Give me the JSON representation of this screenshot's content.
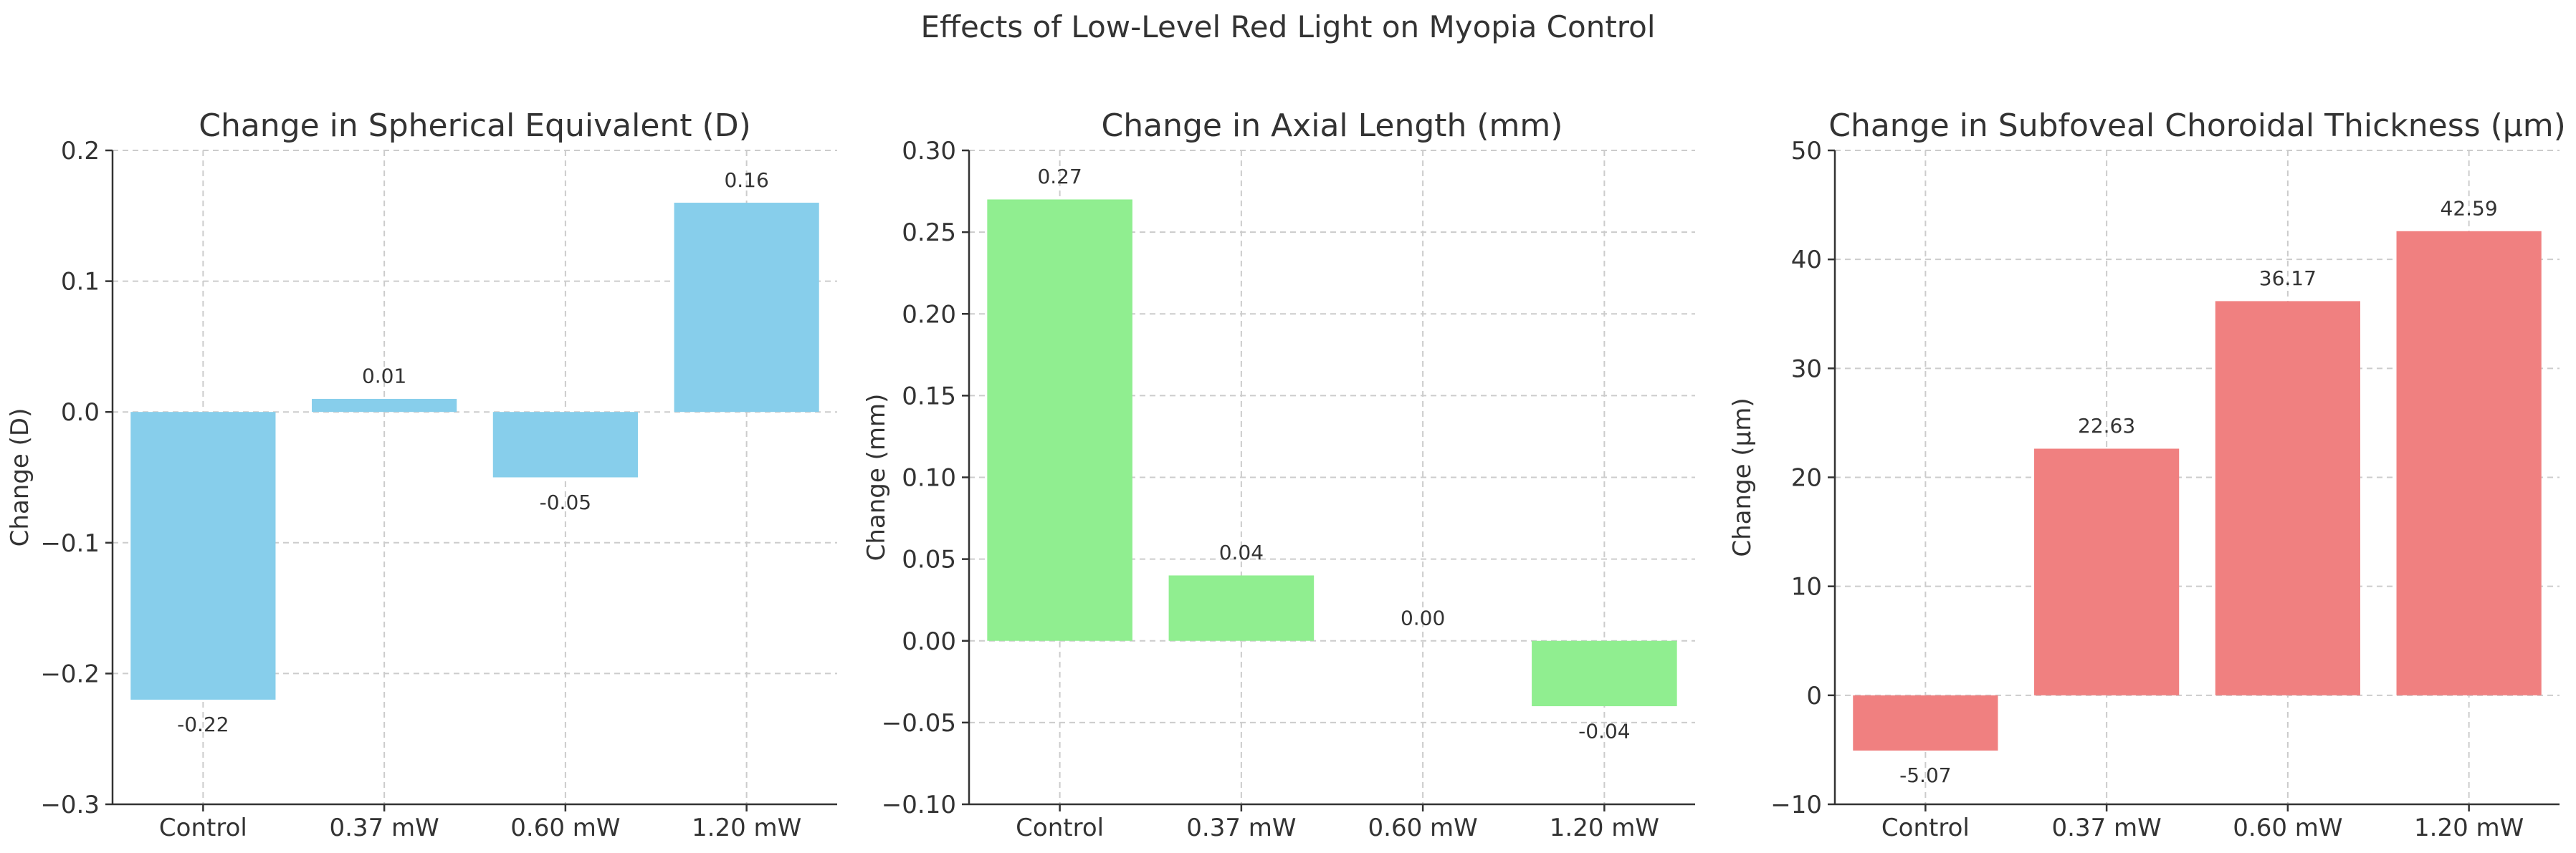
{
  "figure": {
    "suptitle": "Effects of Low-Level Red Light on Myopia Control"
  },
  "chart_data": [
    {
      "type": "bar",
      "title": "Change in Spherical Equivalent (D)",
      "xlabel": "",
      "ylabel": "Change (D)",
      "categories": [
        "Control",
        "0.37 mW",
        "0.60 mW",
        "1.20 mW"
      ],
      "values": [
        -0.22,
        0.01,
        -0.05,
        0.16
      ],
      "value_labels": [
        "-0.22",
        "0.01",
        "-0.05",
        "0.16"
      ],
      "ylim": [
        -0.3,
        0.2
      ],
      "yticks": [
        -0.3,
        -0.2,
        -0.1,
        0.0,
        0.1,
        0.2
      ],
      "ytick_labels": [
        "−0.3",
        "−0.2",
        "−0.1",
        "0.0",
        "0.1",
        "0.2"
      ],
      "color": "#87CEEB",
      "grid": true
    },
    {
      "type": "bar",
      "title": "Change in Axial Length (mm)",
      "xlabel": "",
      "ylabel": "Change (mm)",
      "categories": [
        "Control",
        "0.37 mW",
        "0.60 mW",
        "1.20 mW"
      ],
      "values": [
        0.27,
        0.04,
        0.0,
        -0.04
      ],
      "value_labels": [
        "0.27",
        "0.04",
        "0.00",
        "-0.04"
      ],
      "ylim": [
        -0.1,
        0.3
      ],
      "yticks": [
        -0.1,
        -0.05,
        0.0,
        0.05,
        0.1,
        0.15,
        0.2,
        0.25,
        0.3
      ],
      "ytick_labels": [
        "−0.10",
        "−0.05",
        "0.00",
        "0.05",
        "0.10",
        "0.15",
        "0.20",
        "0.25",
        "0.30"
      ],
      "color": "#90EE90",
      "grid": true
    },
    {
      "type": "bar",
      "title": "Change in Subfoveal Choroidal Thickness (µm)",
      "xlabel": "",
      "ylabel": "Change (µm)",
      "categories": [
        "Control",
        "0.37 mW",
        "0.60 mW",
        "1.20 mW"
      ],
      "values": [
        -5.07,
        22.63,
        36.17,
        42.59
      ],
      "value_labels": [
        "-5.07",
        "22.63",
        "36.17",
        "42.59"
      ],
      "ylim": [
        -10,
        50
      ],
      "yticks": [
        -10,
        0,
        10,
        20,
        30,
        40,
        50
      ],
      "ytick_labels": [
        "−10",
        "0",
        "10",
        "20",
        "30",
        "40",
        "50"
      ],
      "color": "#F08080",
      "grid": true
    }
  ]
}
